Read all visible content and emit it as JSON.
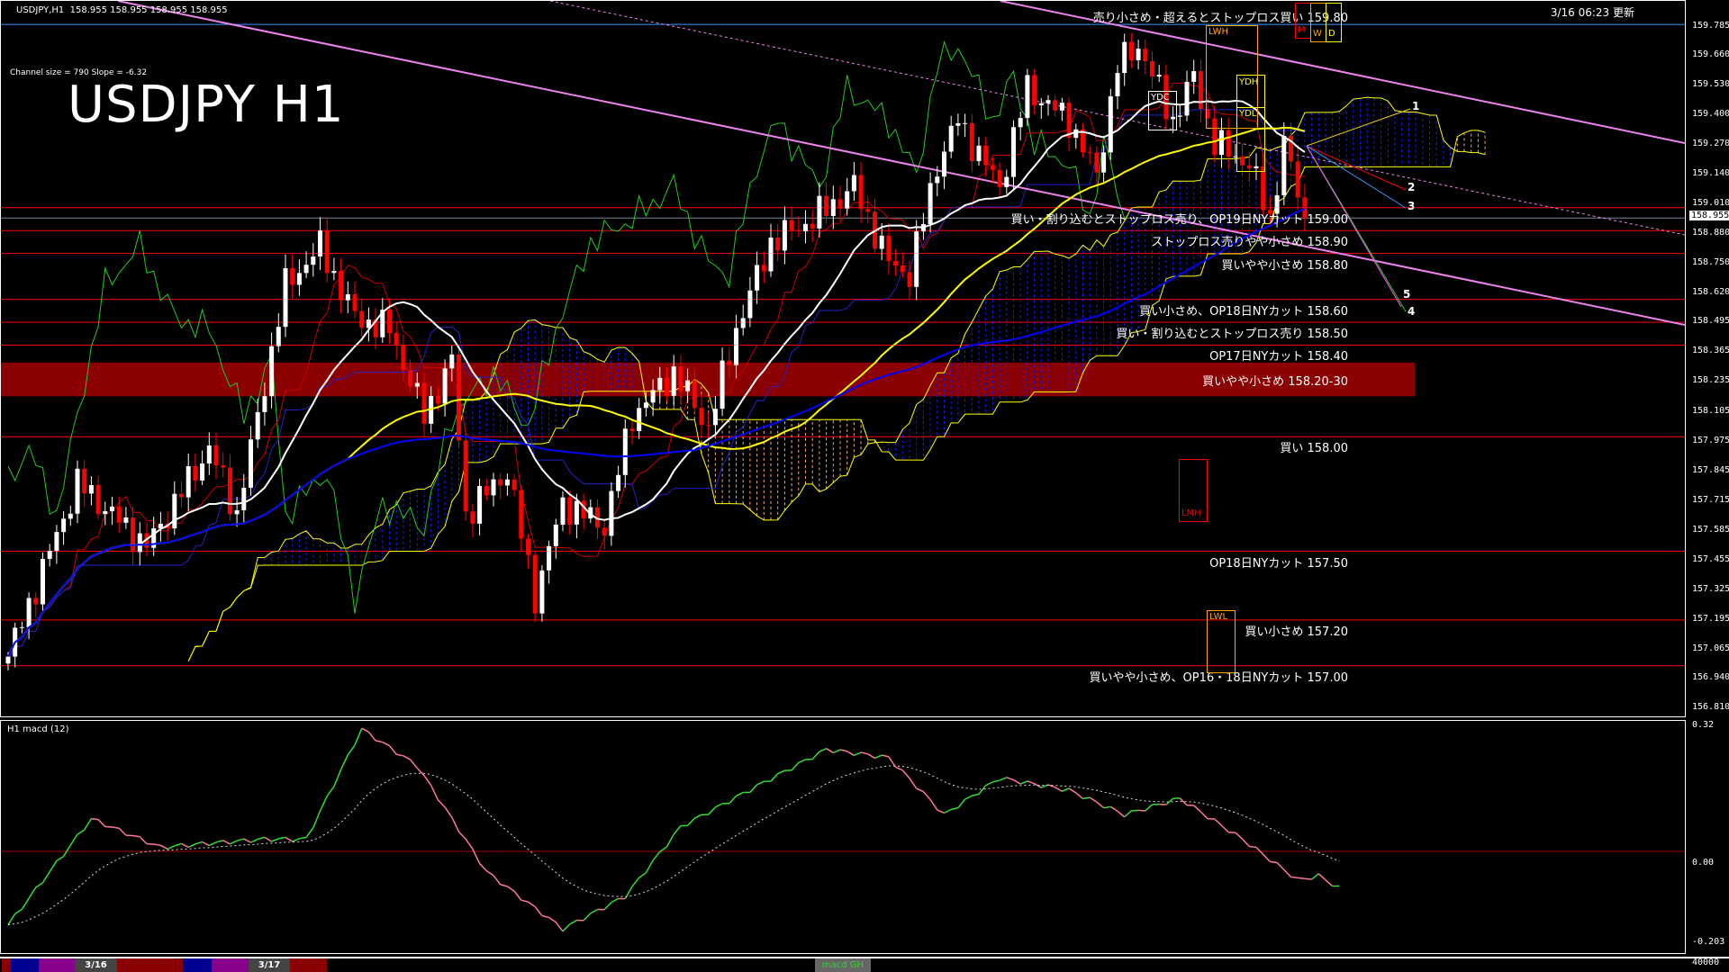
{
  "header": {
    "symbol_line": "USDJPY,H1  158.955 158.955 158.955 158.955",
    "updated": "3/16 06:23 更新"
  },
  "overlay": {
    "channel_info": "Channel size = 790 Slope = -6.32",
    "big_title": "USDJPY H1"
  },
  "current_price": "158.955",
  "price_axis_ticks": [
    "159.785",
    "159.660",
    "159.530",
    "159.400",
    "159.270",
    "159.140",
    "159.010",
    "158.880",
    "158.750",
    "158.620",
    "158.495",
    "158.365",
    "158.235",
    "158.105",
    "157.975",
    "157.845",
    "157.715",
    "157.585",
    "157.455",
    "157.325",
    "157.195",
    "157.065",
    "156.940",
    "156.810"
  ],
  "levels": [
    {
      "price": 159.8,
      "label": "売り小さめ・超えるとストップロス買い 159.80"
    },
    {
      "price": 159.0,
      "label": "買い・割り込むとストップロス売り、OP19日NYカット 159.00"
    },
    {
      "price": 158.9,
      "label": "ストップロス売りやや小さめ 158.90"
    },
    {
      "price": 158.8,
      "label": "買いやや小さめ 158.80"
    },
    {
      "price": 158.6,
      "label": "買い小さめ、OP18日NYカット 158.60"
    },
    {
      "price": 158.5,
      "label": "買い・割り込むとストップロス売り 158.50"
    },
    {
      "price": 158.4,
      "label": "OP17日NYカット 158.40"
    },
    {
      "price": 158.25,
      "label": "買いやや小さめ 158.20-30",
      "band": [
        158.2,
        158.3
      ]
    },
    {
      "price": 158.0,
      "label": "買い 158.00"
    },
    {
      "price": 157.5,
      "label": "OP18日NYカット 157.50"
    },
    {
      "price": 157.2,
      "label": "買い小さめ 157.20"
    },
    {
      "price": 157.0,
      "label": "買いやや小さめ、OP16・18日NYカット 157.00"
    }
  ],
  "markers": {
    "lwh": "LWH",
    "m": "M",
    "w": "W",
    "d": "D",
    "ydh": "YDH",
    "ydc": "YDC",
    "ydl": "YDL",
    "lmh": "LMH",
    "lwl": "LWL",
    "fan": [
      "1",
      "2",
      "3",
      "4",
      "5"
    ]
  },
  "macd_pane": {
    "label": "H1  macd (12)",
    "ticks": [
      "0.32",
      "0.00",
      "-0.203"
    ],
    "volume_tick": "40000"
  },
  "bottom_strip": {
    "dates": [
      "3/16",
      "3/17"
    ],
    "macd_button": "macd GH"
  },
  "colors": {
    "bull": "#ffffff",
    "bear": "#ff0000",
    "level": "#ff0000",
    "band": "#8b0000",
    "trend": "#ee82ee",
    "ma_fast": "#ffffff",
    "ma_mid": "#ffff00",
    "ma_slow": "#0000ff",
    "cloud_bull": "#1a1aff",
    "cloud_bear": "#ffaa77",
    "macd_up": "#33dd33",
    "macd_down": "#ff7799"
  },
  "chart_data": {
    "type": "candlestick",
    "title": "USDJPY H1",
    "ylim": [
      156.81,
      159.785
    ],
    "bars": 200,
    "price_waypoints": [
      [
        0,
        157.04
      ],
      [
        10,
        157.8
      ],
      [
        20,
        157.52
      ],
      [
        29,
        157.95
      ],
      [
        33,
        157.66
      ],
      [
        40,
        158.66
      ],
      [
        45,
        158.83
      ],
      [
        50,
        158.52
      ],
      [
        55,
        158.47
      ],
      [
        60,
        158.09
      ],
      [
        64,
        158.33
      ],
      [
        66,
        157.66
      ],
      [
        72,
        157.85
      ],
      [
        76,
        157.3
      ],
      [
        80,
        157.71
      ],
      [
        86,
        157.61
      ],
      [
        90,
        158.09
      ],
      [
        96,
        158.28
      ],
      [
        101,
        158.04
      ],
      [
        105,
        158.47
      ],
      [
        110,
        158.85
      ],
      [
        116,
        158.95
      ],
      [
        122,
        159.09
      ],
      [
        127,
        158.76
      ],
      [
        130,
        158.71
      ],
      [
        134,
        159.19
      ],
      [
        137,
        159.38
      ],
      [
        143,
        159.09
      ],
      [
        147,
        159.52
      ],
      [
        153,
        159.38
      ],
      [
        157,
        159.14
      ],
      [
        160,
        159.62
      ],
      [
        163,
        159.71
      ],
      [
        168,
        159.38
      ],
      [
        171,
        159.57
      ],
      [
        174,
        159.28
      ],
      [
        179,
        159.19
      ],
      [
        182,
        158.95
      ],
      [
        184,
        159.28
      ],
      [
        187,
        158.955
      ]
    ],
    "macd_waypoints": [
      [
        0,
        -0.18
      ],
      [
        12,
        0.08
      ],
      [
        22,
        0.01
      ],
      [
        29,
        0.02
      ],
      [
        37,
        0.03
      ],
      [
        43,
        0.03
      ],
      [
        51,
        0.3
      ],
      [
        59,
        0.21
      ],
      [
        69,
        -0.05
      ],
      [
        80,
        -0.19
      ],
      [
        89,
        -0.11
      ],
      [
        97,
        0.06
      ],
      [
        108,
        0.16
      ],
      [
        118,
        0.25
      ],
      [
        127,
        0.23
      ],
      [
        135,
        0.09
      ],
      [
        143,
        0.18
      ],
      [
        153,
        0.15
      ],
      [
        161,
        0.09
      ],
      [
        169,
        0.13
      ],
      [
        178,
        0.03
      ],
      [
        186,
        -0.07
      ],
      [
        189,
        -0.06
      ],
      [
        192,
        -0.09
      ]
    ],
    "macd_ylim": [
      -0.203,
      0.32
    ]
  }
}
